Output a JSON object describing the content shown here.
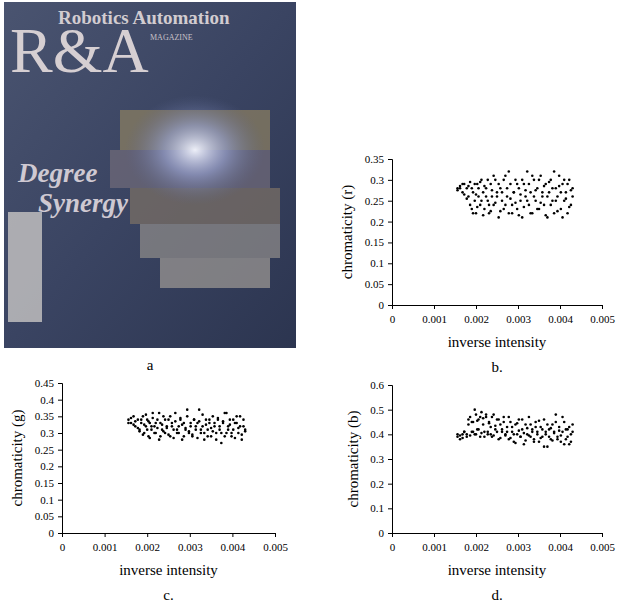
{
  "image": {
    "label": "a",
    "texts": [
      "R&A",
      "Robotics Automation",
      "MAGAZINE",
      "Degree",
      "Synergy"
    ]
  },
  "chart_data": [
    {
      "type": "scatter",
      "panel": "b.",
      "x_label": "inverse intensity",
      "y_label": "chromaticity (r)",
      "color": "#000000",
      "marker": "dot",
      "xlim": [
        0,
        0.005
      ],
      "ylim": [
        0,
        0.35
      ],
      "xticks": [
        0,
        0.001,
        0.002,
        0.003,
        0.004,
        0.005
      ],
      "yticks": [
        0,
        0.05,
        0.1,
        0.15,
        0.2,
        0.25,
        0.3,
        0.35
      ],
      "x": [
        0.00156,
        0.00162,
        0.00168,
        0.00172,
        0.00178,
        0.00182,
        0.00186,
        0.0019,
        0.00193,
        0.00197,
        0.002,
        0.00203,
        0.00206,
        0.0021,
        0.00213,
        0.00217,
        0.0022,
        0.00224,
        0.00228,
        0.00231,
        0.00235,
        0.00238,
        0.00242,
        0.00246,
        0.0025,
        0.00254,
        0.00258,
        0.00262,
        0.00266,
        0.0027,
        0.00274,
        0.00278,
        0.00282,
        0.00286,
        0.0029,
        0.00294,
        0.00298,
        0.00302,
        0.00306,
        0.0031,
        0.00314,
        0.00318,
        0.00322,
        0.00326,
        0.0033,
        0.00334,
        0.00338,
        0.00342,
        0.00346,
        0.0035,
        0.00354,
        0.00358,
        0.00362,
        0.00366,
        0.0037,
        0.00374,
        0.00378,
        0.00382,
        0.00386,
        0.0039,
        0.00394,
        0.00398,
        0.00402,
        0.00406,
        0.0041,
        0.00414,
        0.00418,
        0.00422,
        0.00426,
        0.0043,
        0.00156,
        0.00162,
        0.00168,
        0.00172,
        0.00178,
        0.00182,
        0.00186,
        0.0019,
        0.00193,
        0.00197,
        0.002,
        0.00203,
        0.00206,
        0.0021,
        0.00213,
        0.00217,
        0.0022,
        0.00224,
        0.00228,
        0.00231,
        0.00235,
        0.00238,
        0.00242,
        0.00246,
        0.0025,
        0.00254,
        0.00258,
        0.00262,
        0.00266,
        0.0027,
        0.00274,
        0.00278,
        0.00282,
        0.00286,
        0.0029,
        0.00294,
        0.00298,
        0.00302,
        0.00306,
        0.0031,
        0.00314,
        0.00318,
        0.00322,
        0.00326,
        0.0033,
        0.00334,
        0.00338,
        0.00342,
        0.00346,
        0.0035,
        0.00354,
        0.00358,
        0.00362,
        0.00366,
        0.0037,
        0.00374,
        0.00378,
        0.00382,
        0.00386,
        0.0039,
        0.00394,
        0.00398,
        0.00402,
        0.00406,
        0.0041,
        0.00414,
        0.00418,
        0.00422,
        0.00426,
        0.0043
      ],
      "values": [
        0.28,
        0.285,
        0.27,
        0.29,
        0.28,
        0.26,
        0.295,
        0.23,
        0.27,
        0.25,
        0.22,
        0.29,
        0.26,
        0.24,
        0.3,
        0.27,
        0.23,
        0.28,
        0.25,
        0.22,
        0.29,
        0.26,
        0.24,
        0.3,
        0.27,
        0.21,
        0.28,
        0.25,
        0.23,
        0.31,
        0.26,
        0.22,
        0.29,
        0.24,
        0.27,
        0.3,
        0.23,
        0.28,
        0.25,
        0.21,
        0.29,
        0.26,
        0.32,
        0.24,
        0.27,
        0.22,
        0.3,
        0.25,
        0.28,
        0.23,
        0.31,
        0.26,
        0.24,
        0.29,
        0.21,
        0.27,
        0.3,
        0.25,
        0.22,
        0.28,
        0.26,
        0.31,
        0.23,
        0.29,
        0.25,
        0.27,
        0.22,
        0.3,
        0.24,
        0.28,
        0.275,
        0.28,
        0.29,
        0.265,
        0.255,
        0.285,
        0.24,
        0.28,
        0.22,
        0.29,
        0.265,
        0.235,
        0.28,
        0.295,
        0.25,
        0.215,
        0.285,
        0.26,
        0.3,
        0.24,
        0.225,
        0.275,
        0.31,
        0.245,
        0.26,
        0.29,
        0.225,
        0.27,
        0.3,
        0.24,
        0.28,
        0.32,
        0.255,
        0.22,
        0.27,
        0.245,
        0.29,
        0.215,
        0.265,
        0.3,
        0.235,
        0.275,
        0.25,
        0.29,
        0.22,
        0.31,
        0.26,
        0.275,
        0.23,
        0.3,
        0.245,
        0.27,
        0.285,
        0.215,
        0.26,
        0.295,
        0.24,
        0.28,
        0.32,
        0.25,
        0.225,
        0.285,
        0.27,
        0.21,
        0.3,
        0.255,
        0.29,
        0.235,
        0.275,
        0.26
      ]
    },
    {
      "type": "scatter",
      "panel": "c.",
      "x_label": "inverse intensity",
      "y_label": "chromaticity (g)",
      "color": "#000000",
      "marker": "dot",
      "xlim": [
        0,
        0.005
      ],
      "ylim": [
        0,
        0.45
      ],
      "xticks": [
        0,
        0.001,
        0.002,
        0.003,
        0.004,
        0.005
      ],
      "yticks": [
        0,
        0.05,
        0.1,
        0.15,
        0.2,
        0.25,
        0.3,
        0.35,
        0.4,
        0.45
      ],
      "x": [
        0.00156,
        0.00162,
        0.00168,
        0.00172,
        0.00178,
        0.00182,
        0.00186,
        0.0019,
        0.00193,
        0.00197,
        0.002,
        0.00203,
        0.00206,
        0.0021,
        0.00213,
        0.00217,
        0.0022,
        0.00224,
        0.00228,
        0.00231,
        0.00235,
        0.00238,
        0.00242,
        0.00246,
        0.0025,
        0.00254,
        0.00258,
        0.00262,
        0.00266,
        0.0027,
        0.00274,
        0.00278,
        0.00282,
        0.00286,
        0.0029,
        0.00294,
        0.00298,
        0.00302,
        0.00306,
        0.0031,
        0.00314,
        0.00318,
        0.00322,
        0.00326,
        0.0033,
        0.00334,
        0.00338,
        0.00342,
        0.00346,
        0.0035,
        0.00354,
        0.00358,
        0.00362,
        0.00366,
        0.0037,
        0.00374,
        0.00378,
        0.00382,
        0.00386,
        0.0039,
        0.00394,
        0.00398,
        0.00402,
        0.00406,
        0.0041,
        0.00414,
        0.00418,
        0.00422,
        0.00426,
        0.0043,
        0.00156,
        0.00162,
        0.00168,
        0.00172,
        0.00178,
        0.00182,
        0.00186,
        0.0019,
        0.00193,
        0.00197,
        0.002,
        0.00203,
        0.00206,
        0.0021,
        0.00213,
        0.00217,
        0.0022,
        0.00224,
        0.00228,
        0.00231,
        0.00235,
        0.00238,
        0.00242,
        0.00246,
        0.0025,
        0.00254,
        0.00258,
        0.00262,
        0.00266,
        0.0027,
        0.00274,
        0.00278,
        0.00282,
        0.00286,
        0.0029,
        0.00294,
        0.00298,
        0.00302,
        0.00306,
        0.0031,
        0.00314,
        0.00318,
        0.00322,
        0.00326,
        0.0033,
        0.00334,
        0.00338,
        0.00342,
        0.00346,
        0.0035,
        0.00354,
        0.00358,
        0.00362,
        0.00366,
        0.0037,
        0.00374,
        0.00378,
        0.00382,
        0.00386,
        0.0039,
        0.00394,
        0.00398,
        0.00402,
        0.00406,
        0.0041,
        0.00414,
        0.00418,
        0.00422,
        0.00426,
        0.0043
      ],
      "values": [
        0.34,
        0.33,
        0.35,
        0.32,
        0.34,
        0.31,
        0.33,
        0.35,
        0.3,
        0.32,
        0.34,
        0.29,
        0.33,
        0.31,
        0.36,
        0.32,
        0.3,
        0.34,
        0.28,
        0.33,
        0.31,
        0.35,
        0.3,
        0.32,
        0.34,
        0.29,
        0.33,
        0.31,
        0.36,
        0.3,
        0.32,
        0.34,
        0.28,
        0.33,
        0.31,
        0.35,
        0.3,
        0.32,
        0.29,
        0.34,
        0.31,
        0.33,
        0.37,
        0.3,
        0.32,
        0.28,
        0.34,
        0.31,
        0.33,
        0.29,
        0.35,
        0.32,
        0.3,
        0.34,
        0.31,
        0.27,
        0.33,
        0.36,
        0.3,
        0.32,
        0.34,
        0.29,
        0.31,
        0.33,
        0.35,
        0.3,
        0.32,
        0.28,
        0.34,
        0.31,
        0.33,
        0.345,
        0.325,
        0.335,
        0.315,
        0.305,
        0.34,
        0.295,
        0.325,
        0.355,
        0.31,
        0.335,
        0.285,
        0.32,
        0.345,
        0.3,
        0.33,
        0.315,
        0.36,
        0.29,
        0.325,
        0.305,
        0.34,
        0.315,
        0.295,
        0.35,
        0.32,
        0.285,
        0.335,
        0.31,
        0.3,
        0.345,
        0.325,
        0.29,
        0.315,
        0.37,
        0.305,
        0.33,
        0.295,
        0.34,
        0.32,
        0.285,
        0.335,
        0.31,
        0.355,
        0.3,
        0.325,
        0.29,
        0.34,
        0.315,
        0.305,
        0.33,
        0.28,
        0.345,
        0.32,
        0.3,
        0.335,
        0.29,
        0.36,
        0.31,
        0.325,
        0.3,
        0.34,
        0.285,
        0.33,
        0.315,
        0.35,
        0.295,
        0.32,
        0.305
      ]
    },
    {
      "type": "scatter",
      "panel": "d.",
      "x_label": "inverse intensity",
      "y_label": "chromaticity (b)",
      "color": "#000000",
      "marker": "dot",
      "xlim": [
        0,
        0.005
      ],
      "ylim": [
        0,
        0.6
      ],
      "xticks": [
        0,
        0.001,
        0.002,
        0.003,
        0.004,
        0.005
      ],
      "yticks": [
        0,
        0.1,
        0.2,
        0.3,
        0.4,
        0.5,
        0.6
      ],
      "x": [
        0.00156,
        0.00162,
        0.00168,
        0.00172,
        0.00178,
        0.00182,
        0.00186,
        0.0019,
        0.00193,
        0.00197,
        0.002,
        0.00203,
        0.00206,
        0.0021,
        0.00213,
        0.00217,
        0.0022,
        0.00224,
        0.00228,
        0.00231,
        0.00235,
        0.00238,
        0.00242,
        0.00246,
        0.0025,
        0.00254,
        0.00258,
        0.00262,
        0.00266,
        0.0027,
        0.00274,
        0.00278,
        0.00282,
        0.00286,
        0.0029,
        0.00294,
        0.00298,
        0.00302,
        0.00306,
        0.0031,
        0.00314,
        0.00318,
        0.00322,
        0.00326,
        0.0033,
        0.00334,
        0.00338,
        0.00342,
        0.00346,
        0.0035,
        0.00354,
        0.00358,
        0.00362,
        0.00366,
        0.0037,
        0.00374,
        0.00378,
        0.00382,
        0.00386,
        0.0039,
        0.00394,
        0.00398,
        0.00402,
        0.00406,
        0.0041,
        0.00414,
        0.00418,
        0.00422,
        0.00426,
        0.0043,
        0.00156,
        0.00162,
        0.00168,
        0.00172,
        0.00178,
        0.00182,
        0.00186,
        0.0019,
        0.00193,
        0.00197,
        0.002,
        0.00203,
        0.00206,
        0.0021,
        0.00213,
        0.00217,
        0.0022,
        0.00224,
        0.00228,
        0.00231,
        0.00235,
        0.00238,
        0.00242,
        0.00246,
        0.0025,
        0.00254,
        0.00258,
        0.00262,
        0.00266,
        0.0027,
        0.00274,
        0.00278,
        0.00282,
        0.00286,
        0.0029,
        0.00294,
        0.00298,
        0.00302,
        0.00306,
        0.0031,
        0.00314,
        0.00318,
        0.00322,
        0.00326,
        0.0033,
        0.00334,
        0.00338,
        0.00342,
        0.00346,
        0.0035,
        0.00354,
        0.00358,
        0.00362,
        0.00366,
        0.0037,
        0.00374,
        0.00378,
        0.00382,
        0.00386,
        0.0039,
        0.00394,
        0.00398,
        0.00402,
        0.00406,
        0.0041,
        0.00414,
        0.00418,
        0.00422,
        0.00426,
        0.0043
      ],
      "values": [
        0.39,
        0.38,
        0.4,
        0.41,
        0.39,
        0.44,
        0.47,
        0.41,
        0.45,
        0.4,
        0.48,
        0.42,
        0.46,
        0.39,
        0.49,
        0.44,
        0.41,
        0.47,
        0.4,
        0.45,
        0.43,
        0.39,
        0.48,
        0.42,
        0.46,
        0.38,
        0.44,
        0.41,
        0.47,
        0.4,
        0.43,
        0.38,
        0.45,
        0.41,
        0.37,
        0.44,
        0.4,
        0.46,
        0.39,
        0.42,
        0.36,
        0.44,
        0.4,
        0.47,
        0.39,
        0.42,
        0.38,
        0.45,
        0.41,
        0.37,
        0.43,
        0.39,
        0.46,
        0.4,
        0.35,
        0.42,
        0.38,
        0.44,
        0.41,
        0.48,
        0.39,
        0.43,
        0.37,
        0.41,
        0.45,
        0.38,
        0.42,
        0.36,
        0.4,
        0.44,
        0.4,
        0.395,
        0.385,
        0.41,
        0.4,
        0.46,
        0.395,
        0.45,
        0.41,
        0.5,
        0.4,
        0.455,
        0.42,
        0.47,
        0.405,
        0.465,
        0.39,
        0.48,
        0.41,
        0.445,
        0.4,
        0.47,
        0.395,
        0.435,
        0.41,
        0.46,
        0.385,
        0.42,
        0.45,
        0.395,
        0.41,
        0.47,
        0.385,
        0.43,
        0.4,
        0.365,
        0.445,
        0.415,
        0.39,
        0.46,
        0.405,
        0.375,
        0.425,
        0.395,
        0.44,
        0.41,
        0.37,
        0.43,
        0.4,
        0.455,
        0.385,
        0.42,
        0.35,
        0.41,
        0.44,
        0.39,
        0.425,
        0.375,
        0.405,
        0.45,
        0.38,
        0.415,
        0.395,
        0.47,
        0.36,
        0.42,
        0.39,
        0.43,
        0.37,
        0.41
      ]
    }
  ]
}
